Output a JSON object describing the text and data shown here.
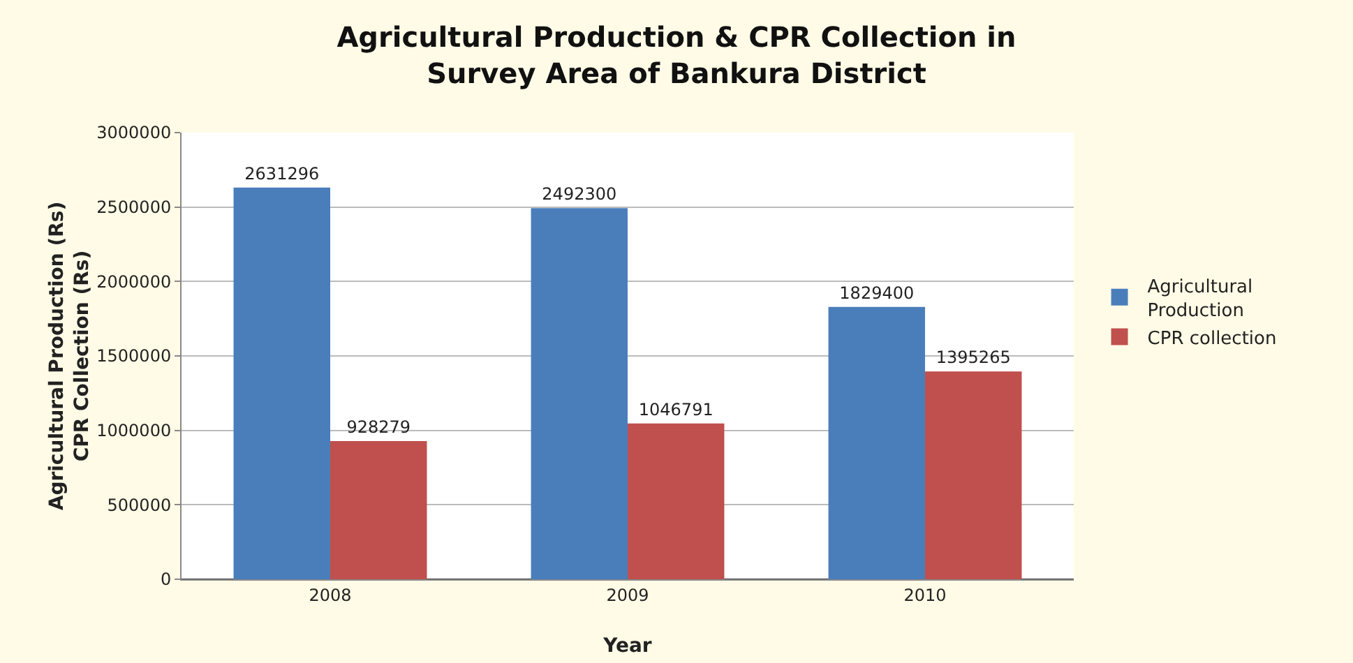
{
  "chart_data": {
    "type": "bar",
    "title": "Agricultural Production & CPR Collection in\nSurvey Area of Bankura District",
    "xlabel": "Year",
    "ylabel": "Agricultural Production (Rs)\nCPR Collection (Rs)",
    "categories": [
      "2008",
      "2009",
      "2010"
    ],
    "series": [
      {
        "name": "Agricultural\nProduction",
        "color": "#4a7ebb",
        "values": [
          2631296,
          2492300,
          1829400
        ]
      },
      {
        "name": "CPR collection",
        "color": "#c0504d",
        "values": [
          928279,
          1046791,
          1395265
        ]
      }
    ],
    "ylim": [
      0,
      3000000
    ],
    "yticks": [
      0,
      500000,
      1000000,
      1500000,
      2000000,
      2500000,
      3000000
    ],
    "grid": "y",
    "legend": "right",
    "data_labels": true
  }
}
